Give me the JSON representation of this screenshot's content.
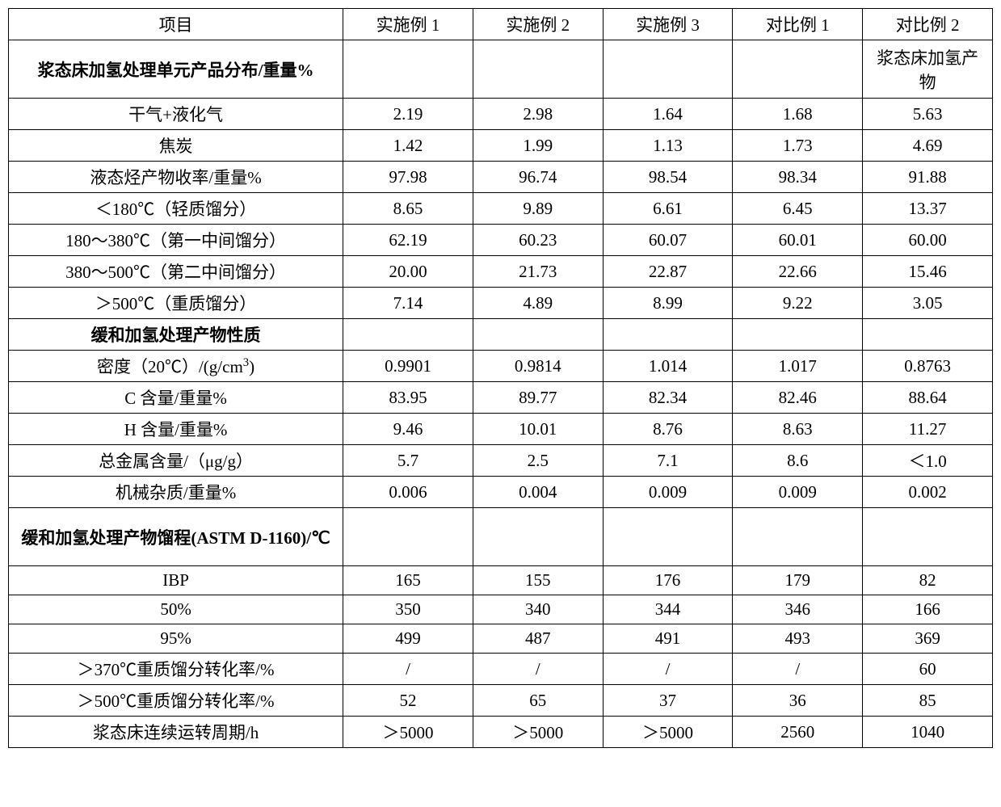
{
  "headers": {
    "col0": "项目",
    "col1": "实施例 1",
    "col2": "实施例 2",
    "col3": "实施例 3",
    "col4": "对比例 1",
    "col5": "对比例 2"
  },
  "rows": [
    {
      "label": "浆态床加氢处理单元产品分布/重量%",
      "bold": true,
      "c1": "",
      "c2": "",
      "c3": "",
      "c4": "",
      "c5": "浆态床加氢产物",
      "tall": true
    },
    {
      "label": "干气+液化气",
      "bold": false,
      "c1": "2.19",
      "c2": "2.98",
      "c3": "1.64",
      "c4": "1.68",
      "c5": "5.63"
    },
    {
      "label": "焦炭",
      "bold": false,
      "c1": "1.42",
      "c2": "1.99",
      "c3": "1.13",
      "c4": "1.73",
      "c5": "4.69"
    },
    {
      "label": "液态烃产物收率/重量%",
      "bold": false,
      "c1": "97.98",
      "c2": "96.74",
      "c3": "98.54",
      "c4": "98.34",
      "c5": "91.88"
    },
    {
      "label": "＜180℃（轻质馏分）",
      "bold": false,
      "c1": "8.65",
      "c2": "9.89",
      "c3": "6.61",
      "c4": "6.45",
      "c5": "13.37"
    },
    {
      "label": "180～380℃（第一中间馏分）",
      "bold": false,
      "c1": "62.19",
      "c2": "60.23",
      "c3": "60.07",
      "c4": "60.01",
      "c5": "60.00"
    },
    {
      "label": "380～500℃（第二中间馏分）",
      "bold": false,
      "c1": "20.00",
      "c2": "21.73",
      "c3": "22.87",
      "c4": "22.66",
      "c5": "15.46"
    },
    {
      "label": "＞500℃（重质馏分）",
      "bold": false,
      "c1": "7.14",
      "c2": "4.89",
      "c3": "8.99",
      "c4": "9.22",
      "c5": "3.05"
    },
    {
      "label": "缓和加氢处理产物性质",
      "bold": true,
      "c1": "",
      "c2": "",
      "c3": "",
      "c4": "",
      "c5": ""
    },
    {
      "label": "密度（20℃）/(g/cm³)",
      "bold": false,
      "c1": "0.9901",
      "c2": "0.9814",
      "c3": "1.014",
      "c4": "1.017",
      "c5": "0.8763",
      "html_label": "密度（20℃）/(g/cm<sup>3</sup>)"
    },
    {
      "label": "C 含量/重量%",
      "bold": false,
      "c1": "83.95",
      "c2": "89.77",
      "c3": "82.34",
      "c4": "82.46",
      "c5": "88.64"
    },
    {
      "label": "H 含量/重量%",
      "bold": false,
      "c1": "9.46",
      "c2": "10.01",
      "c3": "8.76",
      "c4": "8.63",
      "c5": "11.27"
    },
    {
      "label": "总金属含量/（μg/g）",
      "bold": false,
      "c1": "5.7",
      "c2": "2.5",
      "c3": "7.1",
      "c4": "8.6",
      "c5": "＜1.0"
    },
    {
      "label": "机械杂质/重量%",
      "bold": false,
      "c1": "0.006",
      "c2": "0.004",
      "c3": "0.009",
      "c4": "0.009",
      "c5": "0.002"
    },
    {
      "label": "缓和加氢处理产物馏程(ASTM D-1160)/℃",
      "bold": true,
      "c1": "",
      "c2": "",
      "c3": "",
      "c4": "",
      "c5": "",
      "tall": true
    },
    {
      "label": "IBP",
      "bold": false,
      "c1": "165",
      "c2": "155",
      "c3": "176",
      "c4": "179",
      "c5": "82"
    },
    {
      "label": "50%",
      "bold": false,
      "c1": "350",
      "c2": "340",
      "c3": "344",
      "c4": "346",
      "c5": "166"
    },
    {
      "label": "95%",
      "bold": false,
      "c1": "499",
      "c2": "487",
      "c3": "491",
      "c4": "493",
      "c5": "369"
    },
    {
      "label": "＞370℃重质馏分转化率/%",
      "bold": false,
      "c1": "/",
      "c2": "/",
      "c3": "/",
      "c4": "/",
      "c5": "60"
    },
    {
      "label": "＞500℃重质馏分转化率/%",
      "bold": false,
      "c1": "52",
      "c2": "65",
      "c3": "37",
      "c4": "36",
      "c5": "85"
    },
    {
      "label": "浆态床连续运转周期/h",
      "bold": false,
      "c1": "＞5000",
      "c2": "＞5000",
      "c3": "＞5000",
      "c4": "2560",
      "c5": "1040"
    }
  ]
}
